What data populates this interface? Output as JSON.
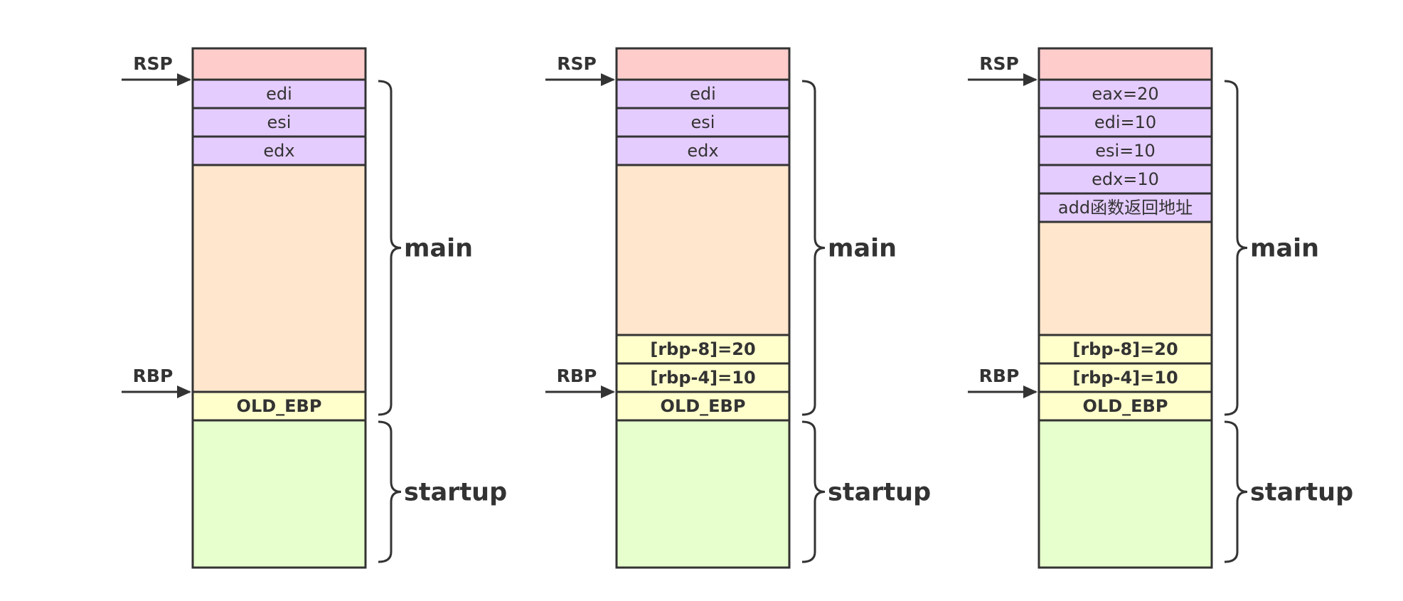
{
  "colors": {
    "red": "#ffcccc",
    "purple": "#e5ccff",
    "peach": "#ffe6cc",
    "yellow": "#ffffcc",
    "green": "#e6ffcc",
    "stroke": "#333333"
  },
  "diagrams": [
    {
      "id": "stack-1",
      "cells": [
        {
          "text": "",
          "color": "red"
        },
        {
          "text": "edi",
          "color": "purple"
        },
        {
          "text": "esi",
          "color": "purple"
        },
        {
          "text": "edx",
          "color": "purple"
        },
        {
          "text": "",
          "color": "peach"
        },
        {
          "text": "OLD_EBP",
          "color": "yellow",
          "bold": true
        },
        {
          "text": "",
          "color": "green"
        }
      ],
      "pointers": [
        {
          "label": "RSP",
          "at_cell": 1
        },
        {
          "label": "RBP",
          "at_cell": 5
        }
      ],
      "regions": [
        {
          "label": "main",
          "from_cell": 1,
          "to_cell": 5
        },
        {
          "label": "startup",
          "from_cell": 6,
          "to_cell": 6
        }
      ]
    },
    {
      "id": "stack-2",
      "cells": [
        {
          "text": "",
          "color": "red"
        },
        {
          "text": "edi",
          "color": "purple"
        },
        {
          "text": "esi",
          "color": "purple"
        },
        {
          "text": "edx",
          "color": "purple"
        },
        {
          "text": "",
          "color": "peach"
        },
        {
          "text": "[rbp-8]=20",
          "color": "yellow",
          "bold": true
        },
        {
          "text": "[rbp-4]=10",
          "color": "yellow",
          "bold": true
        },
        {
          "text": "OLD_EBP",
          "color": "yellow",
          "bold": true
        },
        {
          "text": "",
          "color": "green"
        }
      ],
      "pointers": [
        {
          "label": "RSP",
          "at_cell": 1
        },
        {
          "label": "RBP",
          "at_cell": 7
        }
      ],
      "regions": [
        {
          "label": "main",
          "from_cell": 1,
          "to_cell": 7
        },
        {
          "label": "startup",
          "from_cell": 8,
          "to_cell": 8
        }
      ]
    },
    {
      "id": "stack-3",
      "cells": [
        {
          "text": "",
          "color": "red"
        },
        {
          "text": "eax=20",
          "color": "purple"
        },
        {
          "text": "edi=10",
          "color": "purple"
        },
        {
          "text": "esi=10",
          "color": "purple"
        },
        {
          "text": "edx=10",
          "color": "purple"
        },
        {
          "text": "add函数返回地址",
          "color": "purple"
        },
        {
          "text": "",
          "color": "peach"
        },
        {
          "text": "[rbp-8]=20",
          "color": "yellow",
          "bold": true
        },
        {
          "text": "[rbp-4]=10",
          "color": "yellow",
          "bold": true
        },
        {
          "text": "OLD_EBP",
          "color": "yellow",
          "bold": true
        },
        {
          "text": "",
          "color": "green"
        }
      ],
      "pointers": [
        {
          "label": "RSP",
          "at_cell": 1
        },
        {
          "label": "RBP",
          "at_cell": 9
        }
      ],
      "regions": [
        {
          "label": "main",
          "from_cell": 1,
          "to_cell": 9
        },
        {
          "label": "startup",
          "from_cell": 10,
          "to_cell": 10
        }
      ]
    }
  ]
}
